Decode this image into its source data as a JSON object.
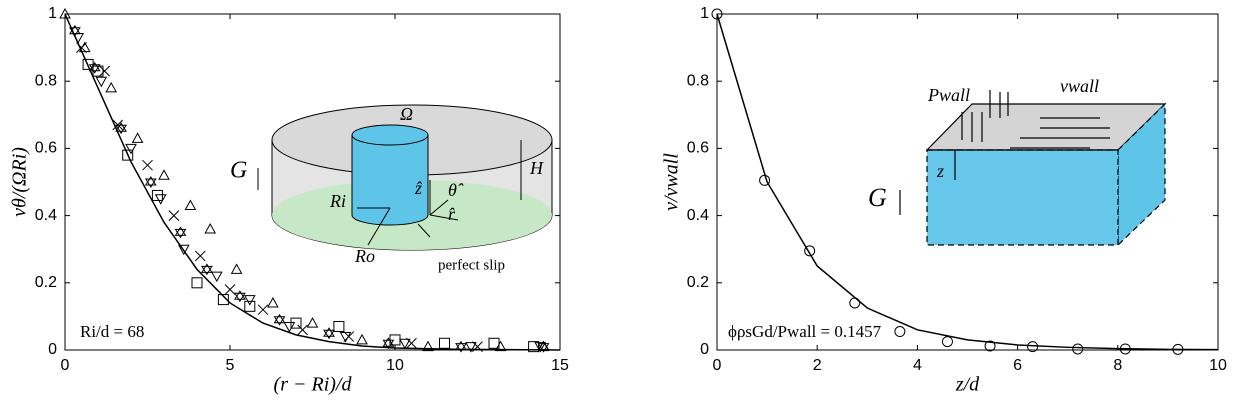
{
  "chart_data": [
    {
      "type": "scatter",
      "xlabel": "(r − Ri)/d",
      "ylabel": "vθ/(ΩRi)",
      "xlim": [
        0,
        15
      ],
      "ylim": [
        0,
        1
      ],
      "xticks": [
        0,
        5,
        10,
        15
      ],
      "yticks": [
        0,
        0.2,
        0.4,
        0.6,
        0.8,
        1
      ],
      "annotations": [
        "Ri/d = 68"
      ],
      "inset_labels": [
        "Ω",
        "G",
        "H",
        "Ri",
        "Ro",
        "ẑ",
        "θ̂",
        "r̂",
        "perfect slip"
      ],
      "series": [
        {
          "kind": "line",
          "color": "#000000",
          "x": [
            0,
            1,
            2,
            3,
            4,
            5,
            6,
            7,
            8,
            9,
            10,
            12,
            15
          ],
          "values": [
            1,
            0.78,
            0.56,
            0.38,
            0.24,
            0.14,
            0.08,
            0.045,
            0.025,
            0.012,
            0.006,
            0.002,
            0
          ]
        },
        {
          "kind": "scatter",
          "marker": "triangle-up",
          "color": "#000000",
          "x": [
            0,
            0.6,
            1.4,
            2.2,
            3.0,
            3.8,
            4.4,
            5.2,
            6.3,
            7.5,
            9.0,
            11.0,
            13.2,
            14.5
          ],
          "values": [
            1,
            0.9,
            0.78,
            0.63,
            0.52,
            0.43,
            0.36,
            0.24,
            0.14,
            0.08,
            0.03,
            0.01,
            0.01,
            0.01
          ]
        },
        {
          "kind": "scatter",
          "marker": "square",
          "color": "#000000",
          "x": [
            0.7,
            1.0,
            1.9,
            2.8,
            4.0,
            4.8,
            5.6,
            7.0,
            8.3,
            10.0,
            11.5,
            13.0,
            14.2
          ],
          "values": [
            0.85,
            0.83,
            0.58,
            0.46,
            0.2,
            0.15,
            0.13,
            0.08,
            0.07,
            0.03,
            0.02,
            0.02,
            0.01
          ]
        },
        {
          "kind": "scatter",
          "marker": "cross",
          "color": "#000000",
          "x": [
            0.5,
            1.2,
            1.6,
            2.5,
            3.3,
            4.1,
            5.0,
            6.0,
            7.2,
            8.6,
            10.5,
            12.5
          ],
          "values": [
            0.9,
            0.83,
            0.67,
            0.55,
            0.4,
            0.28,
            0.18,
            0.12,
            0.06,
            0.04,
            0.02,
            0.01
          ]
        },
        {
          "kind": "scatter",
          "marker": "star",
          "color": "#000000",
          "x": [
            0.3,
            0.9,
            1.7,
            2.6,
            3.5,
            4.3,
            5.3,
            6.5,
            8.0,
            9.8,
            12.0,
            14.5
          ],
          "values": [
            0.95,
            0.84,
            0.66,
            0.5,
            0.35,
            0.24,
            0.16,
            0.09,
            0.05,
            0.02,
            0.01,
            0.01
          ]
        },
        {
          "kind": "scatter",
          "marker": "triangle-down",
          "color": "#000000",
          "x": [
            0.4,
            1.1,
            2.0,
            2.9,
            3.6,
            4.6,
            5.6,
            6.8,
            8.5,
            10.3,
            12.3,
            14.4
          ],
          "values": [
            0.93,
            0.8,
            0.6,
            0.45,
            0.3,
            0.22,
            0.15,
            0.07,
            0.04,
            0.02,
            0.01,
            0.01
          ]
        }
      ]
    },
    {
      "type": "scatter",
      "xlabel": "z/d",
      "ylabel": "v/vwall",
      "xlim": [
        0,
        10
      ],
      "ylim": [
        0,
        1
      ],
      "xticks": [
        0,
        2,
        4,
        6,
        8,
        10
      ],
      "yticks": [
        0,
        0.2,
        0.4,
        0.6,
        0.8,
        1
      ],
      "annotations": [
        "ϕρsGd/Pwall = 0.1457"
      ],
      "inset_labels": [
        "Pwall",
        "vwall",
        "z",
        "G"
      ],
      "series": [
        {
          "kind": "line",
          "color": "#000000",
          "x": [
            0,
            1,
            2,
            3,
            4,
            5,
            6,
            7,
            8,
            9,
            10
          ],
          "values": [
            1,
            0.5,
            0.25,
            0.125,
            0.06,
            0.03,
            0.015,
            0.008,
            0.004,
            0.002,
            0.001
          ]
        },
        {
          "kind": "scatter",
          "marker": "circle",
          "color": "#000000",
          "x": [
            0,
            0.95,
            1.85,
            2.75,
            3.65,
            4.6,
            5.45,
            6.3,
            7.2,
            8.15,
            9.2
          ],
          "values": [
            1,
            0.505,
            0.295,
            0.14,
            0.055,
            0.025,
            0.012,
            0.01,
            0.003,
            0.003,
            0.002
          ]
        }
      ]
    }
  ]
}
